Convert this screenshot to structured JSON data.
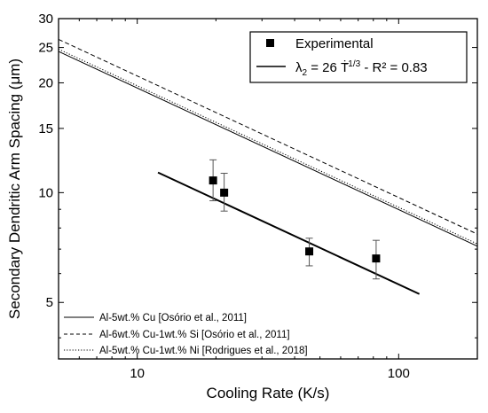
{
  "chart_data": {
    "type": "scatter",
    "xlabel": "Cooling Rate (K/s)",
    "ylabel": "Secondary Dendritic Arm Spacing (μm)",
    "xscale": "log",
    "yscale": "log",
    "xlim": [
      5,
      200
    ],
    "ylim": [
      3.5,
      30
    ],
    "grid": false,
    "legend_placement": "top-right",
    "x_ticks": [
      {
        "value": 10,
        "label": "10"
      },
      {
        "value": 100,
        "label": "100"
      }
    ],
    "y_ticks": [
      {
        "value": 5,
        "label": "5"
      },
      {
        "value": 10,
        "label": "10"
      },
      {
        "value": 15,
        "label": "15"
      },
      {
        "value": 20,
        "label": "20"
      },
      {
        "value": 25,
        "label": "25"
      },
      {
        "value": 30,
        "label": "30"
      }
    ],
    "experimental": {
      "name": "Experimental",
      "points": [
        {
          "x": 19.5,
          "y": 10.8,
          "err": [
            9.5,
            12.3
          ]
        },
        {
          "x": 21.5,
          "y": 10.0,
          "err": [
            8.9,
            11.3
          ]
        },
        {
          "x": 45.5,
          "y": 6.9,
          "err": [
            6.3,
            7.5
          ]
        },
        {
          "x": 82,
          "y": 6.6,
          "err": [
            5.8,
            7.4
          ]
        }
      ]
    },
    "fit": {
      "legend_lhs": "λ",
      "legend_sub": "2",
      "legend_eq": " = 26 T",
      "legend_dot": "̇",
      "legend_exp": " -1/3",
      "legend_r2": " - R² = 0.83",
      "coef": 26,
      "exponent": -0.3333,
      "x_range": [
        12,
        120
      ]
    },
    "reference_lines": [
      {
        "name": "Al-5wt.% Cu [Osório et al., 2011]",
        "style": "solid",
        "coef": 41.7,
        "exponent": -0.3333
      },
      {
        "name": "Al-6wt.% Cu-1wt.% Si [Osório et al., 2011]",
        "style": "dashed",
        "coef": 45,
        "exponent": -0.3333
      },
      {
        "name": "Al-5wt.% Cu-1wt.% Ni [Rodrigues et al., 2018]",
        "style": "dotted",
        "coef": 42.3,
        "exponent": -0.3333
      }
    ]
  }
}
